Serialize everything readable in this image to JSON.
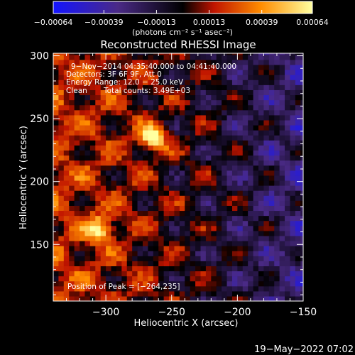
{
  "chart_data": {
    "type": "heatmap",
    "title": "Reconstructed RHESSI Image",
    "xlabel": "Heliocentric X (arcsec)",
    "ylabel": "Heliocentric Y (arcsec)",
    "xlim": [
      -340,
      -150
    ],
    "ylim": [
      105,
      302
    ],
    "x_ticks": [
      -300,
      -250,
      -200,
      -150
    ],
    "x_tick_labels": [
      "−300",
      "−250",
      "−200",
      "−150"
    ],
    "y_ticks": [
      150,
      200,
      250,
      300
    ],
    "y_tick_labels": [
      "150",
      "200",
      "250",
      "300"
    ],
    "colorbar": {
      "unit_label": "(photons cm⁻² s⁻¹ asec⁻²)",
      "range": [
        -0.00064,
        0.00064
      ],
      "ticks": [
        -0.00064,
        -0.00039,
        -0.00013,
        0.00013,
        0.00039,
        0.00064
      ],
      "tick_labels": [
        "−0.00064",
        "−0.00039",
        "−0.00013",
        "0.00013",
        "0.00039",
        "0.00064"
      ],
      "colors": [
        "#1414ff",
        "#4a2a86",
        "#000000",
        "#c01400",
        "#ff8c00",
        "#ffffa0"
      ]
    },
    "sources": [
      {
        "x": -264,
        "y": 235,
        "peak": 0.00064
      },
      {
        "x": -305,
        "y": 162,
        "peak": 0.00052
      }
    ],
    "pixel_size_arcsec": 4,
    "grid": false
  },
  "annotations": {
    "time_range": "9−Nov−2014 04:35:40.000 to 04:41:40.000",
    "detectors": "Detectors: 3F 6F 9F, Att 0",
    "energy_range": "Energy Range: 12.0 − 25.0 keV",
    "algorithm": "Clean",
    "total_counts": "Total counts: 3.49E+03",
    "peak_position": "Position of Peak = [−264,235]"
  },
  "footer": {
    "timestamp": "19−May−2022 07:02"
  }
}
